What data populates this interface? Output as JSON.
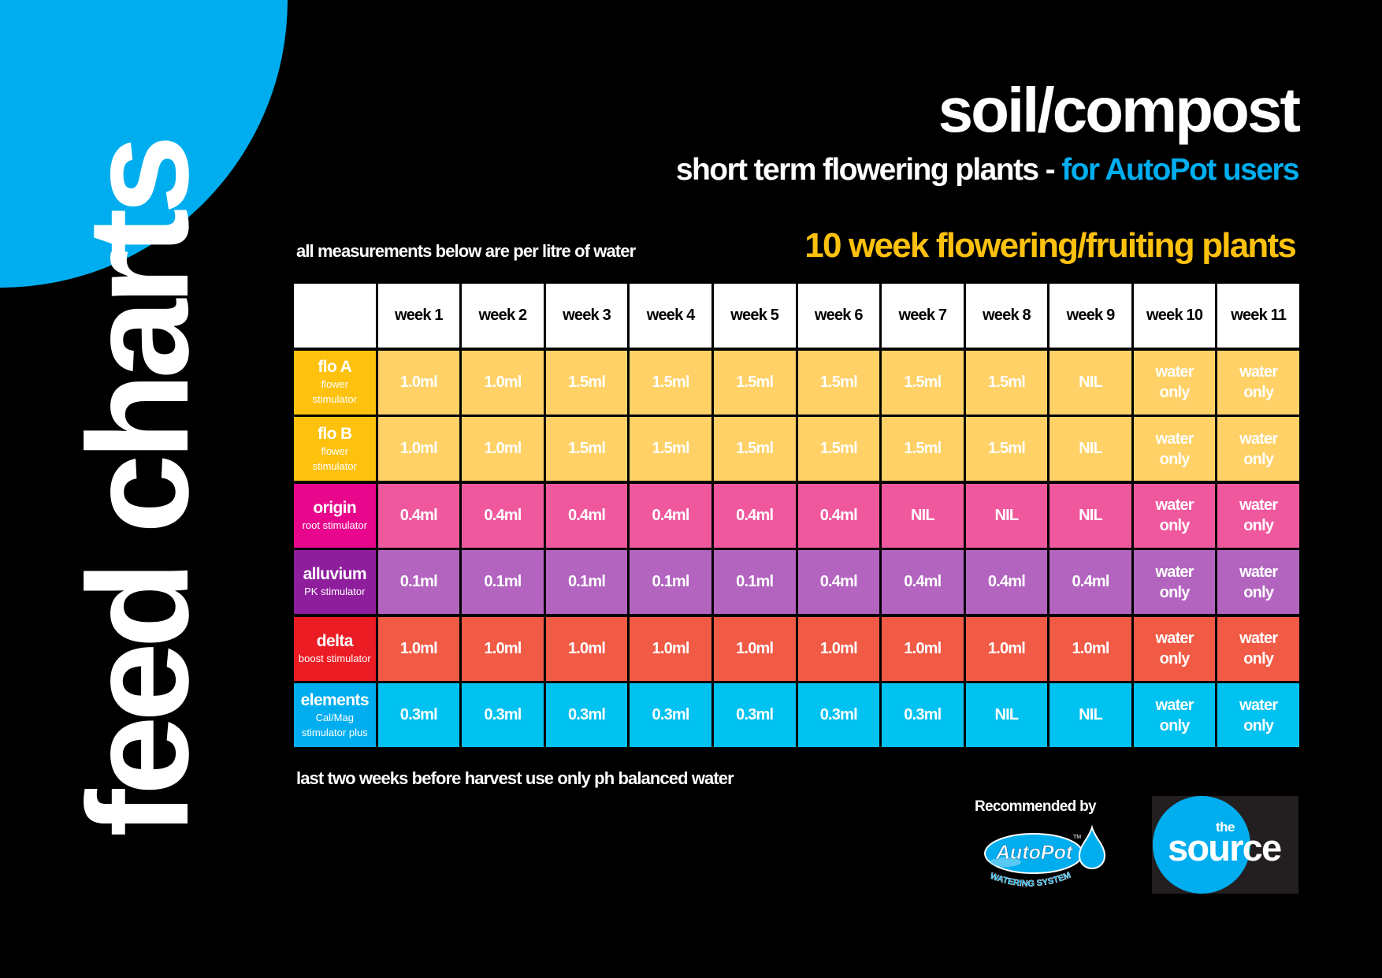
{
  "side_title": "feed charts",
  "header": {
    "title": "soil/compost",
    "subtitle_main": "short term flowering plants - ",
    "subtitle_accent": "for AutoPot users",
    "accent_color": "#00AEEF"
  },
  "note_top": "all measurements below are per litre of water",
  "programme_title": "10 week flowering/fruiting plants",
  "programme_color": "#FDC10E",
  "table": {
    "columns": [
      "",
      "week 1",
      "week 2",
      "week 3",
      "week 4",
      "week 5",
      "week 6",
      "week 7",
      "week 8",
      "week 9",
      "week 10",
      "week 11"
    ],
    "rows": [
      {
        "name": "flo A",
        "desc": "flower stimulator",
        "label_color": "#FDC10E",
        "cell_color": "#FFD166",
        "values": [
          "1.0ml",
          "1.0ml",
          "1.5ml",
          "1.5ml",
          "1.5ml",
          "1.5ml",
          "1.5ml",
          "1.5ml",
          "NIL",
          "water only",
          "water only"
        ]
      },
      {
        "name": "flo B",
        "desc": "flower stimulator",
        "label_color": "#FDC10E",
        "cell_color": "#FFD166",
        "values": [
          "1.0ml",
          "1.0ml",
          "1.5ml",
          "1.5ml",
          "1.5ml",
          "1.5ml",
          "1.5ml",
          "1.5ml",
          "NIL",
          "water only",
          "water only"
        ]
      },
      {
        "name": "origin",
        "desc": "root stimulator",
        "label_color": "#E8078C",
        "cell_color": "#F0589E",
        "values": [
          "0.4ml",
          "0.4ml",
          "0.4ml",
          "0.4ml",
          "0.4ml",
          "0.4ml",
          "NIL",
          "NIL",
          "NIL",
          "water only",
          "water only"
        ]
      },
      {
        "name": "alluvium",
        "desc": "PK stimulator",
        "label_color": "#8E1E9C",
        "cell_color": "#B264BF",
        "values": [
          "0.1ml",
          "0.1ml",
          "0.1ml",
          "0.1ml",
          "0.1ml",
          "0.4ml",
          "0.4ml",
          "0.4ml",
          "0.4ml",
          "water only",
          "water only"
        ]
      },
      {
        "name": "delta",
        "desc": "boost stimulator",
        "label_color": "#EC1C24",
        "cell_color": "#F15A45",
        "values": [
          "1.0ml",
          "1.0ml",
          "1.0ml",
          "1.0ml",
          "1.0ml",
          "1.0ml",
          "1.0ml",
          "1.0ml",
          "1.0ml",
          "water only",
          "water only"
        ]
      },
      {
        "name": "elements",
        "desc": "Cal/Mag stimulator plus",
        "label_color": "#00AEEF",
        "cell_color": "#00C2F0",
        "values": [
          "0.3ml",
          "0.3ml",
          "0.3ml",
          "0.3ml",
          "0.3ml",
          "0.3ml",
          "0.3ml",
          "NIL",
          "NIL",
          "water only",
          "water only"
        ]
      }
    ]
  },
  "footer_note": "last two weeks before harvest use only ph balanced water",
  "recommended_by": "Recommended by",
  "autopot_logo": {
    "brand": "AutoPot",
    "tagline": "WATERING SYSTEMS",
    "tm": "TM"
  },
  "source_logo": {
    "small": "the",
    "word": "source"
  }
}
